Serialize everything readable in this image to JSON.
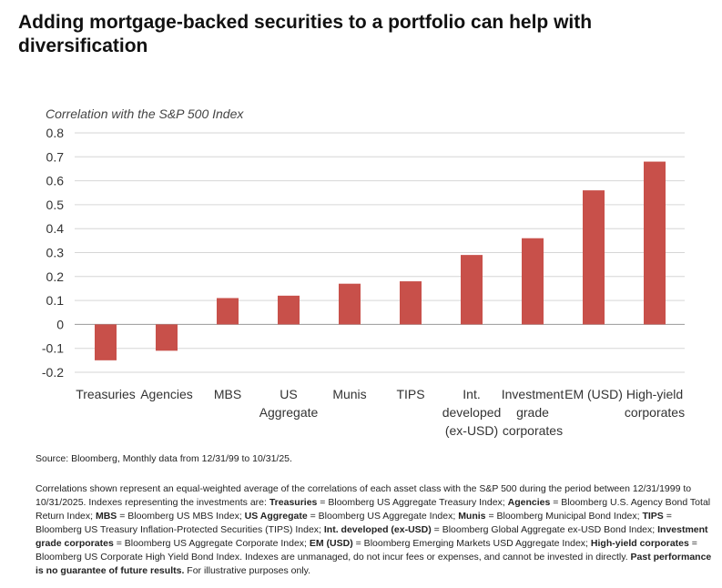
{
  "header": {
    "title": "Adding mortgage-backed securities to a portfolio can help with diversification"
  },
  "chart_data": {
    "type": "bar",
    "title": "",
    "ylabel": "Correlation with the S&P 500 Index",
    "xlabel": "",
    "ylim": [
      -0.2,
      0.8
    ],
    "yticks": [
      0.8,
      0.7,
      0.6,
      0.5,
      0.4,
      0.3,
      0.2,
      0.1,
      0,
      -0.1,
      -0.2
    ],
    "ytick_labels": [
      "0.8",
      "0.7",
      "0.6",
      "0.5",
      "0.4",
      "0.3",
      "0.2",
      "0.1",
      "0",
      "-0.1",
      "-0.2"
    ],
    "grid": true,
    "bar_color": "#c8504a",
    "categories": [
      [
        "Treasuries"
      ],
      [
        "Agencies"
      ],
      [
        "MBS"
      ],
      [
        "US",
        "Aggregate"
      ],
      [
        "Munis"
      ],
      [
        "TIPS"
      ],
      [
        "Int.",
        "developed",
        "(ex-USD)"
      ],
      [
        "Investment",
        "grade",
        "corporates"
      ],
      [
        "EM (USD)"
      ],
      [
        "High-yield",
        "corporates"
      ]
    ],
    "values": [
      -0.15,
      -0.11,
      0.11,
      0.12,
      0.17,
      0.18,
      0.29,
      0.36,
      0.56,
      0.68
    ]
  },
  "footer": {
    "source": "Source: Bloomberg, Monthly data from 12/31/99 to 10/31/25.",
    "notes": [
      {
        "t": "Correlations shown represent an equal-weighted average of the correlations of each asset class with the S&P 500 during the period between 12/31/1999 to 10/31/2025. Indexes representing the investments are: ",
        "b": false
      },
      {
        "t": "Treasuries",
        "b": true
      },
      {
        "t": " = Bloomberg US Aggregate Treasury Index; ",
        "b": false
      },
      {
        "t": "Agencies",
        "b": true
      },
      {
        "t": " = Bloomberg U.S. Agency Bond Total Return Index; ",
        "b": false
      },
      {
        "t": "MBS",
        "b": true
      },
      {
        "t": " = Bloomberg US MBS Index; ",
        "b": false
      },
      {
        "t": "US Aggregate",
        "b": true
      },
      {
        "t": " = Bloomberg US Aggregate Index; ",
        "b": false
      },
      {
        "t": "Munis",
        "b": true
      },
      {
        "t": " = Bloomberg Municipal Bond Index; ",
        "b": false
      },
      {
        "t": "TIPS",
        "b": true
      },
      {
        "t": " = Bloomberg US Treasury Inflation-Protected Securities (TIPS) Index; ",
        "b": false
      },
      {
        "t": "Int. developed (ex-USD)",
        "b": true
      },
      {
        "t": " = Bloomberg Global Aggregate ex-USD Bond Index; ",
        "b": false
      },
      {
        "t": "Investment grade corporates",
        "b": true
      },
      {
        "t": " = Bloomberg US Aggregate Corporate Index; ",
        "b": false
      },
      {
        "t": "EM (USD)",
        "b": true
      },
      {
        "t": " = Bloomberg Emerging Markets USD Aggregate Index; ",
        "b": false
      },
      {
        "t": "High-yield corporates",
        "b": true
      },
      {
        "t": " = Bloomberg US Corporate High Yield Bond Index. Indexes are unmanaged, do not incur fees or expenses, and cannot be invested in directly. ",
        "b": false
      },
      {
        "t": "Past performance is no guarantee of future results.",
        "b": true
      },
      {
        "t": " For illustrative purposes only.",
        "b": false
      }
    ]
  }
}
